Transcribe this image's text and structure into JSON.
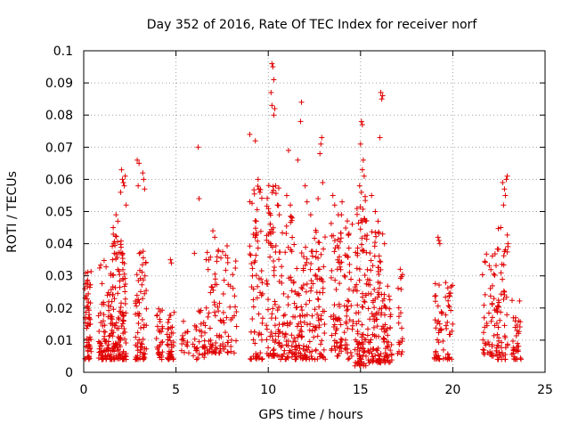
{
  "chart_data": {
    "type": "scatter",
    "title": "Day 352 of 2016, Rate Of TEC Index for receiver norf",
    "xlabel": "GPS time / hours",
    "ylabel": "ROTI / TECUs",
    "xlim": [
      0,
      25
    ],
    "ylim": [
      0,
      0.1
    ],
    "x_ticks": [
      0,
      5,
      10,
      15,
      20,
      25
    ],
    "y_ticks": [
      0,
      0.01,
      0.02,
      0.03,
      0.04,
      0.05,
      0.06,
      0.07,
      0.08,
      0.09,
      0.1
    ],
    "x_tick_labels": [
      "0",
      "5",
      "10",
      "15",
      "20",
      "25"
    ],
    "y_tick_labels": [
      "0",
      "0.01",
      "0.02",
      "0.03",
      "0.04",
      "0.05",
      "0.06",
      "0.07",
      "0.08",
      "0.09",
      "0.1"
    ],
    "grid": true,
    "marker": "plus",
    "marker_color": "#e00000",
    "clusters": [
      {
        "x": [
          0.05,
          0.4
        ],
        "y": [
          0.004,
          0.032
        ],
        "n": 60
      },
      {
        "x": [
          0.8,
          1.4
        ],
        "y": [
          0.004,
          0.035
        ],
        "n": 70
      },
      {
        "x": [
          1.4,
          1.9
        ],
        "y": [
          0.004,
          0.048
        ],
        "n": 80
      },
      {
        "x": [
          1.9,
          2.3
        ],
        "y": [
          0.004,
          0.042
        ],
        "n": 70
      },
      {
        "x": [
          2.8,
          3.4
        ],
        "y": [
          0.004,
          0.038
        ],
        "n": 70
      },
      {
        "x": [
          3.9,
          4.3
        ],
        "y": [
          0.004,
          0.02
        ],
        "n": 30
      },
      {
        "x": [
          4.5,
          4.9
        ],
        "y": [
          0.004,
          0.02
        ],
        "n": 40
      },
      {
        "x": [
          5.3,
          5.7
        ],
        "y": [
          0.006,
          0.016
        ],
        "n": 15
      },
      {
        "x": [
          5.9,
          6.6
        ],
        "y": [
          0.004,
          0.02
        ],
        "n": 35
      },
      {
        "x": [
          6.6,
          7.3
        ],
        "y": [
          0.006,
          0.04
        ],
        "n": 45
      },
      {
        "x": [
          7.3,
          8.3
        ],
        "y": [
          0.006,
          0.04
        ],
        "n": 55
      },
      {
        "x": [
          9.0,
          9.7
        ],
        "y": [
          0.004,
          0.06
        ],
        "n": 70
      },
      {
        "x": [
          9.9,
          10.6
        ],
        "y": [
          0.005,
          0.06
        ],
        "n": 80
      },
      {
        "x": [
          10.6,
          11.5
        ],
        "y": [
          0.004,
          0.05
        ],
        "n": 80
      },
      {
        "x": [
          11.5,
          12.5
        ],
        "y": [
          0.004,
          0.04
        ],
        "n": 90
      },
      {
        "x": [
          12.5,
          13.1
        ],
        "y": [
          0.004,
          0.045
        ],
        "n": 60
      },
      {
        "x": [
          13.4,
          14.0
        ],
        "y": [
          0.005,
          0.05
        ],
        "n": 65
      },
      {
        "x": [
          14.1,
          14.6
        ],
        "y": [
          0.004,
          0.05
        ],
        "n": 45
      },
      {
        "x": [
          14.7,
          15.4
        ],
        "y": [
          0.002,
          0.055
        ],
        "n": 100
      },
      {
        "x": [
          15.4,
          16.1
        ],
        "y": [
          0.003,
          0.045
        ],
        "n": 90
      },
      {
        "x": [
          16.1,
          16.7
        ],
        "y": [
          0.003,
          0.03
        ],
        "n": 55
      },
      {
        "x": [
          17.0,
          17.3
        ],
        "y": [
          0.005,
          0.035
        ],
        "n": 20
      },
      {
        "x": [
          19.0,
          19.5
        ],
        "y": [
          0.004,
          0.028
        ],
        "n": 35
      },
      {
        "x": [
          19.6,
          20.0
        ],
        "y": [
          0.004,
          0.03
        ],
        "n": 30
      },
      {
        "x": [
          21.6,
          22.4
        ],
        "y": [
          0.005,
          0.037
        ],
        "n": 55
      },
      {
        "x": [
          22.4,
          23.0
        ],
        "y": [
          0.004,
          0.045
        ],
        "n": 55
      },
      {
        "x": [
          23.2,
          23.7
        ],
        "y": [
          0.004,
          0.025
        ],
        "n": 35
      }
    ],
    "points": [
      [
        2.05,
        0.063
      ],
      [
        2.1,
        0.06
      ],
      [
        2.15,
        0.059
      ],
      [
        2.2,
        0.058
      ],
      [
        2.0,
        0.056
      ],
      [
        2.25,
        0.061
      ],
      [
        2.9,
        0.066
      ],
      [
        3.0,
        0.065
      ],
      [
        2.95,
        0.058
      ],
      [
        3.2,
        0.062
      ],
      [
        3.3,
        0.057
      ],
      [
        3.25,
        0.06
      ],
      [
        1.75,
        0.049
      ],
      [
        1.85,
        0.047
      ],
      [
        2.3,
        0.052
      ],
      [
        1.6,
        0.045
      ],
      [
        4.7,
        0.035
      ],
      [
        4.75,
        0.034
      ],
      [
        6.2,
        0.07
      ],
      [
        6.25,
        0.054
      ],
      [
        6.0,
        0.037
      ],
      [
        7.0,
        0.044
      ],
      [
        7.1,
        0.042
      ],
      [
        7.3,
        0.038
      ],
      [
        9.0,
        0.074
      ],
      [
        9.3,
        0.072
      ],
      [
        9.5,
        0.057
      ],
      [
        9.45,
        0.06
      ],
      [
        9.55,
        0.056
      ],
      [
        10.2,
        0.096
      ],
      [
        10.25,
        0.095
      ],
      [
        10.3,
        0.091
      ],
      [
        10.15,
        0.087
      ],
      [
        10.2,
        0.083
      ],
      [
        10.35,
        0.082
      ],
      [
        10.3,
        0.08
      ],
      [
        10.4,
        0.058
      ],
      [
        10.5,
        0.052
      ],
      [
        10.6,
        0.049
      ],
      [
        11.1,
        0.069
      ],
      [
        11.0,
        0.055
      ],
      [
        11.2,
        0.052
      ],
      [
        11.3,
        0.048
      ],
      [
        11.8,
        0.084
      ],
      [
        11.75,
        0.078
      ],
      [
        11.6,
        0.066
      ],
      [
        12.0,
        0.058
      ],
      [
        12.1,
        0.053
      ],
      [
        12.3,
        0.049
      ],
      [
        12.9,
        0.073
      ],
      [
        12.85,
        0.071
      ],
      [
        12.8,
        0.068
      ],
      [
        12.95,
        0.059
      ],
      [
        12.7,
        0.054
      ],
      [
        13.5,
        0.055
      ],
      [
        13.6,
        0.052
      ],
      [
        13.8,
        0.049
      ],
      [
        14.0,
        0.053
      ],
      [
        15.05,
        0.078
      ],
      [
        15.1,
        0.077
      ],
      [
        15.0,
        0.071
      ],
      [
        15.15,
        0.066
      ],
      [
        15.1,
        0.063
      ],
      [
        15.2,
        0.061
      ],
      [
        14.95,
        0.058
      ],
      [
        15.05,
        0.056
      ],
      [
        16.1,
        0.087
      ],
      [
        16.15,
        0.085
      ],
      [
        16.2,
        0.086
      ],
      [
        16.05,
        0.073
      ],
      [
        15.6,
        0.055
      ],
      [
        15.8,
        0.05
      ],
      [
        15.95,
        0.047
      ],
      [
        16.2,
        0.043
      ],
      [
        16.3,
        0.04
      ],
      [
        19.2,
        0.042
      ],
      [
        19.25,
        0.041
      ],
      [
        19.3,
        0.04
      ],
      [
        22.7,
        0.059
      ],
      [
        22.8,
        0.057
      ],
      [
        22.85,
        0.055
      ],
      [
        22.9,
        0.06
      ],
      [
        22.95,
        0.061
      ],
      [
        22.75,
        0.052
      ],
      [
        22.6,
        0.045
      ]
    ]
  }
}
